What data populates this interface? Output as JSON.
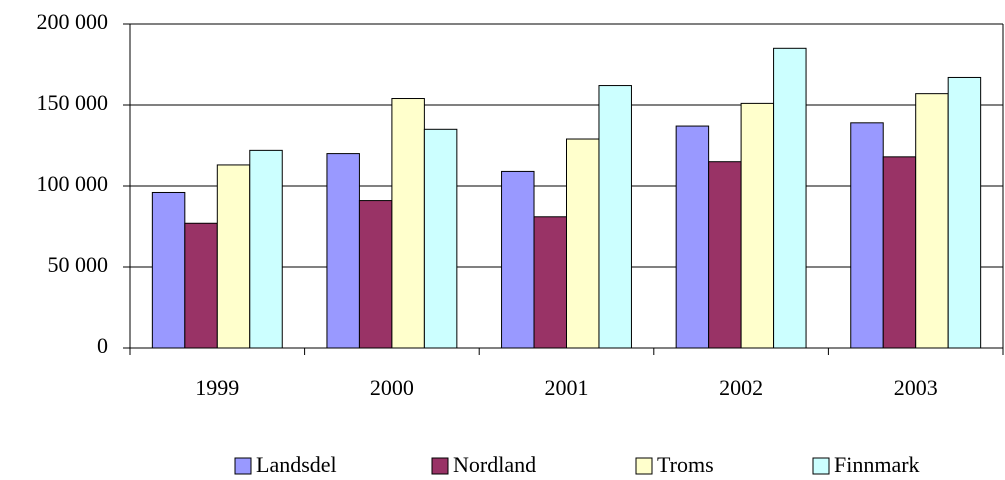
{
  "chart_data": {
    "type": "bar",
    "categories": [
      "1999",
      "2000",
      "2001",
      "2002",
      "2003"
    ],
    "series": [
      {
        "name": "Landsdel",
        "color": "#9999ff",
        "values": [
          96000,
          120000,
          109000,
          137000,
          139000
        ]
      },
      {
        "name": "Nordland",
        "color": "#993366",
        "values": [
          77000,
          91000,
          81000,
          115000,
          118000
        ]
      },
      {
        "name": "Troms",
        "color": "#ffffcc",
        "values": [
          113000,
          154000,
          129000,
          151000,
          157000
        ]
      },
      {
        "name": "Finnmark",
        "color": "#ccffff",
        "values": [
          122000,
          135000,
          162000,
          185000,
          167000
        ]
      }
    ],
    "ylim": [
      0,
      200000
    ],
    "yticks": [
      0,
      {
        "value": 50000,
        "label": "50 000"
      },
      {
        "value": 100000,
        "label": "100 000"
      },
      {
        "value": 150000,
        "label": "150 000"
      },
      {
        "value": 200000,
        "label": "200 000"
      }
    ],
    "grid": true,
    "legend": "bottom"
  }
}
